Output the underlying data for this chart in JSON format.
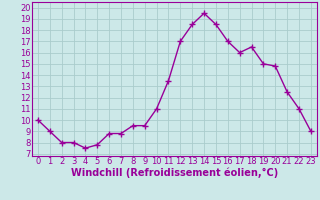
{
  "x": [
    0,
    1,
    2,
    3,
    4,
    5,
    6,
    7,
    8,
    9,
    10,
    11,
    12,
    13,
    14,
    15,
    16,
    17,
    18,
    19,
    20,
    21,
    22,
    23
  ],
  "y": [
    10,
    9,
    8,
    8,
    7.5,
    7.8,
    8.8,
    8.8,
    9.5,
    9.5,
    11,
    13.5,
    17,
    18.5,
    19.5,
    18.5,
    17,
    16,
    16.5,
    15,
    14.8,
    12.5,
    11,
    9
  ],
  "line_color": "#990099",
  "marker": "+",
  "marker_size": 4,
  "marker_lw": 1.0,
  "bg_color": "#cce8e8",
  "grid_color": "#aacccc",
  "xlabel": "Windchill (Refroidissement éolien,°C)",
  "xlabel_fontsize": 7.0,
  "ylabel_ticks": [
    7,
    8,
    9,
    10,
    11,
    12,
    13,
    14,
    15,
    16,
    17,
    18,
    19,
    20
  ],
  "xlim": [
    -0.5,
    23.5
  ],
  "ylim": [
    6.8,
    20.5
  ],
  "tick_fontsize": 6.0,
  "line_width": 1.0
}
